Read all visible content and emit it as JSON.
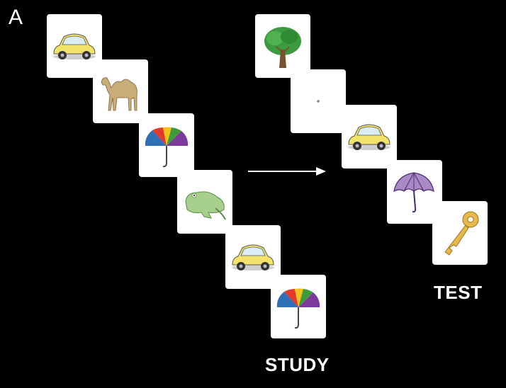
{
  "panel_letter": "A",
  "labels": {
    "study": "STUDY",
    "test": "TEST"
  },
  "study_sequence": [
    "car-icon",
    "camel-icon",
    "umbrella-icon",
    "frog-icon",
    "car-icon",
    "umbrella-icon"
  ],
  "test_sequence": [
    "tree-icon",
    "fixation-cross",
    "car-icon",
    "purple-umbrella-icon",
    "key-icon"
  ],
  "colors": {
    "background": "#000000",
    "card": "#ffffff",
    "label": "#ffffff",
    "arrow": "#ffffff"
  }
}
